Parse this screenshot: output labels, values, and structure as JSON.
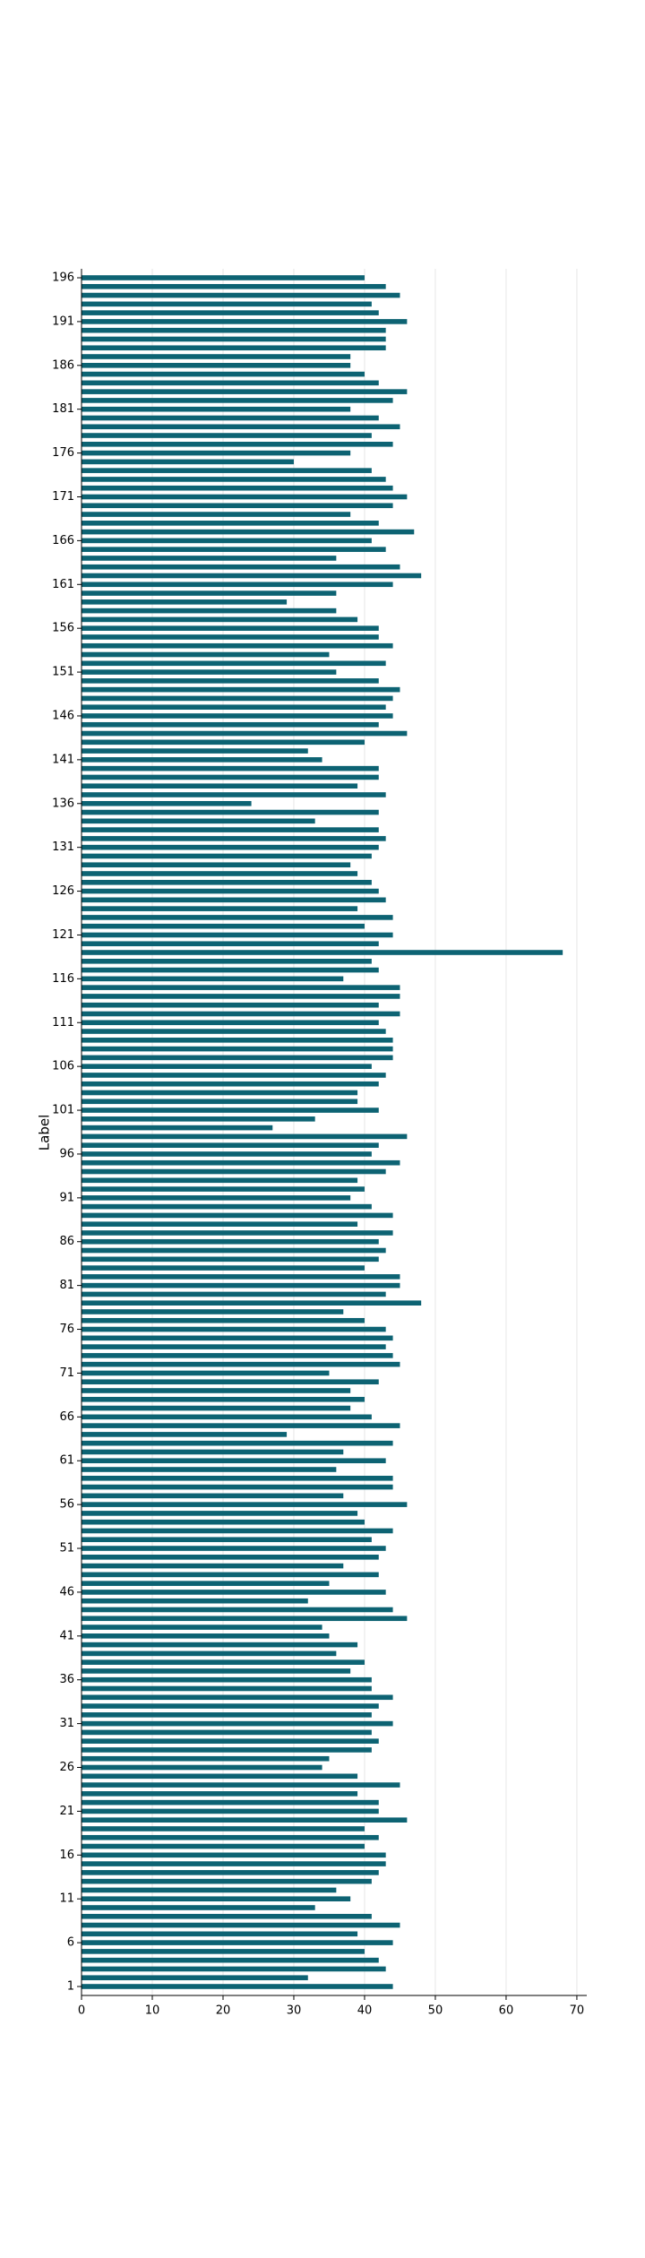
{
  "chart_data": {
    "type": "barh",
    "ylabel": "Label",
    "color": "#0d6373",
    "grid": true,
    "categories": [
      "1",
      null,
      null,
      null,
      null,
      "6",
      null,
      null,
      null,
      null,
      "11",
      null,
      null,
      null,
      null,
      "16",
      null,
      null,
      null,
      null,
      "21",
      null,
      null,
      null,
      null,
      "26",
      null,
      null,
      null,
      null,
      "31",
      null,
      null,
      null,
      null,
      "36",
      null,
      null,
      null,
      null,
      "41",
      null,
      null,
      null,
      null,
      "46",
      null,
      null,
      null,
      null,
      "51",
      null,
      null,
      null,
      null,
      "56",
      null,
      null,
      null,
      null,
      "61",
      null,
      null,
      null,
      null,
      "66",
      null,
      null,
      null,
      null,
      "71",
      null,
      null,
      null,
      null,
      "76",
      null,
      null,
      null,
      null,
      "81",
      null,
      null,
      null,
      null,
      "86",
      null,
      null,
      null,
      null,
      "91",
      null,
      null,
      null,
      null,
      "96",
      null,
      null,
      null,
      null,
      "101",
      null,
      null,
      null,
      null,
      "106",
      null,
      null,
      null,
      null,
      "111",
      null,
      null,
      null,
      null,
      "116",
      null,
      null,
      null,
      null,
      "121",
      null,
      null,
      null,
      null,
      "126",
      null,
      null,
      null,
      null,
      "131",
      null,
      null,
      null,
      null,
      "136",
      null,
      null,
      null,
      null,
      "141",
      null,
      null,
      null,
      null,
      "146",
      null,
      null,
      null,
      null,
      "151",
      null,
      null,
      null,
      null,
      "156",
      null,
      null,
      null,
      null,
      "161",
      null,
      null,
      null,
      null,
      "166",
      null,
      null,
      null,
      null,
      "171",
      null,
      null,
      null,
      null,
      "176",
      null,
      null,
      null,
      null,
      "181",
      null,
      null,
      null,
      null,
      "186",
      null,
      null,
      null,
      null,
      "191",
      null,
      null,
      null,
      null,
      "196"
    ],
    "values": [
      44,
      32,
      43,
      42,
      40,
      44,
      39,
      45,
      41,
      33,
      38,
      36,
      41,
      42,
      43,
      43,
      40,
      42,
      40,
      46,
      42,
      42,
      39,
      45,
      39,
      34,
      35,
      41,
      42,
      41,
      44,
      41,
      42,
      44,
      41,
      41,
      38,
      40,
      36,
      39,
      35,
      34,
      46,
      44,
      32,
      43,
      35,
      42,
      37,
      42,
      43,
      41,
      44,
      40,
      39,
      46,
      37,
      44,
      44,
      36,
      43,
      37,
      44,
      29,
      45,
      41,
      38,
      40,
      38,
      42,
      35,
      45,
      44,
      43,
      44,
      43,
      40,
      37,
      48,
      43,
      45,
      45,
      40,
      42,
      43,
      42,
      44,
      39,
      44,
      41,
      38,
      40,
      39,
      43,
      45,
      41,
      42,
      46,
      27,
      33,
      42,
      39,
      39,
      42,
      43,
      41,
      44,
      44,
      44,
      43,
      42,
      45,
      42,
      45,
      45,
      37,
      42,
      41,
      68,
      42,
      44,
      40,
      44,
      39,
      43,
      42,
      41,
      39,
      38,
      41,
      42,
      43,
      42,
      33,
      42,
      24,
      43,
      39,
      42,
      42,
      34,
      32,
      40,
      46,
      42,
      44,
      43,
      44,
      45,
      42,
      36,
      43,
      35,
      44,
      42,
      42,
      39,
      36,
      29,
      36,
      44,
      48,
      45,
      36,
      43,
      41,
      47,
      42,
      38,
      44,
      46,
      44,
      43,
      41,
      30,
      38,
      44,
      41,
      45,
      42,
      38,
      44,
      46,
      42,
      40,
      38,
      38,
      43,
      43,
      43,
      46,
      42,
      41,
      45,
      43,
      40
    ],
    "xlim": [
      0,
      71.4
    ],
    "xticks": [
      0,
      10,
      20,
      30,
      40,
      50,
      60,
      70
    ]
  }
}
